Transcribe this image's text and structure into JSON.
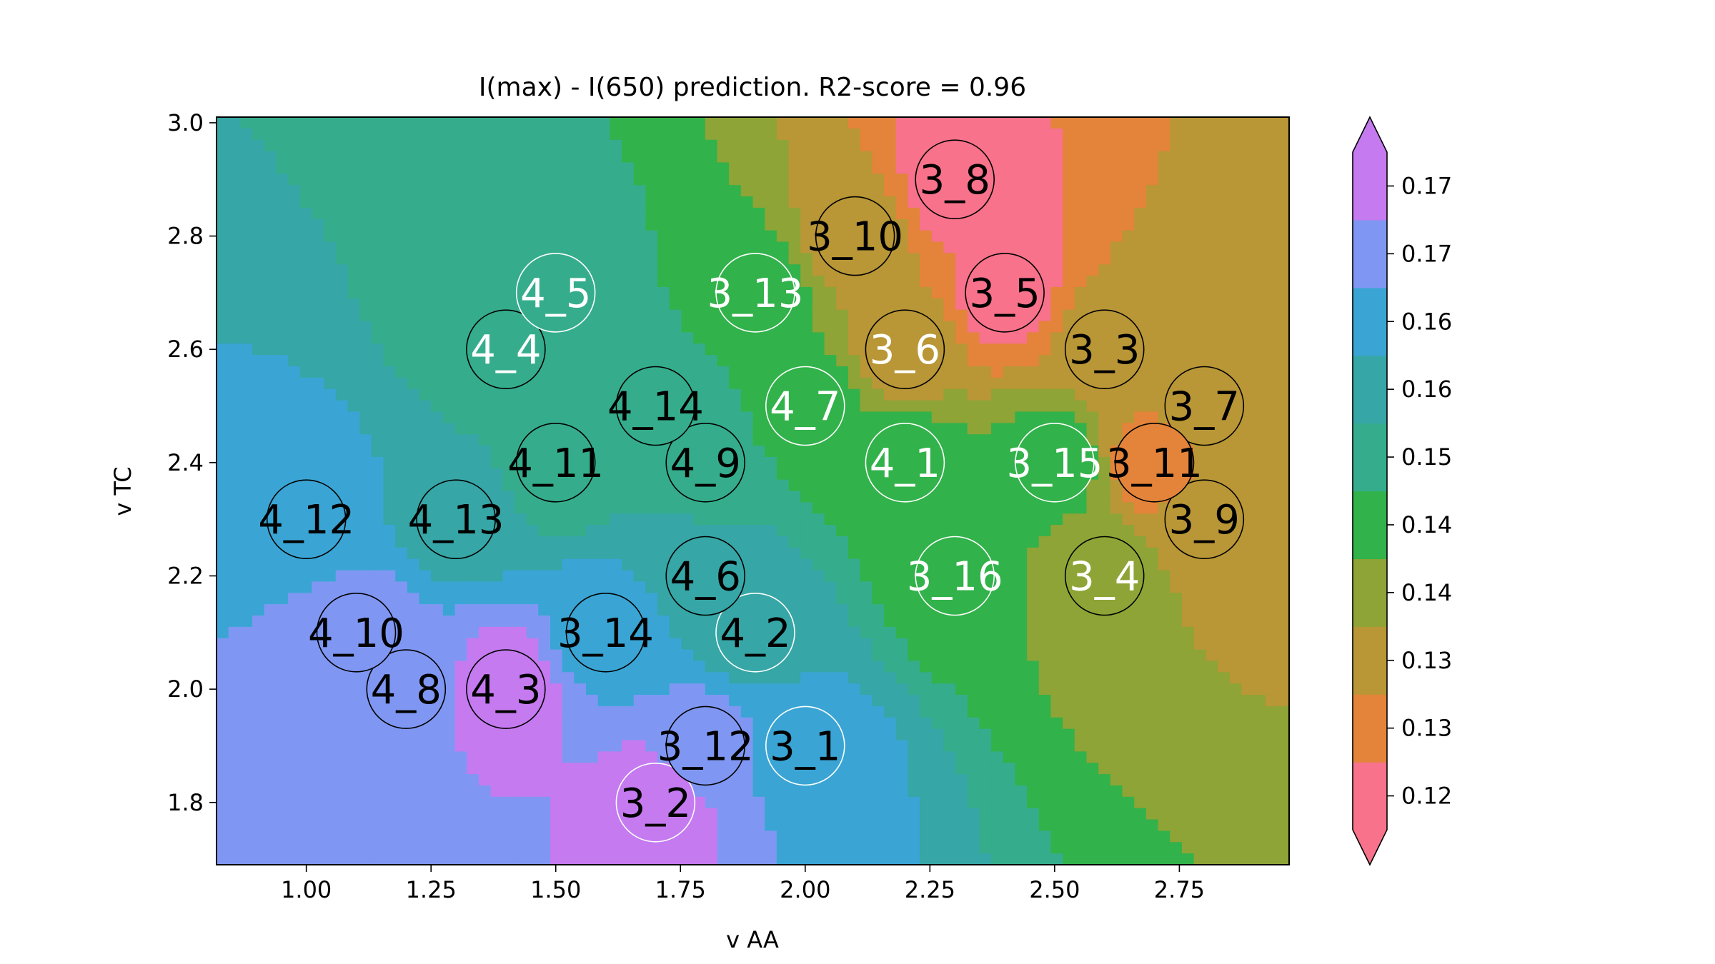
{
  "chart_data": {
    "type": "heatmap",
    "title": "I(max) - I(650) prediction. R2-score = 0.96",
    "xlabel": "v AA",
    "ylabel": "v TC",
    "xlim": [
      0.82,
      2.97
    ],
    "ylim": [
      1.69,
      3.01
    ],
    "x_ticks": [
      1.0,
      1.25,
      1.5,
      1.75,
      2.0,
      2.25,
      2.5,
      2.75
    ],
    "x_tick_labels": [
      "1.00",
      "1.25",
      "1.50",
      "1.75",
      "2.00",
      "2.25",
      "2.50",
      "2.75"
    ],
    "y_ticks": [
      1.8,
      2.0,
      2.2,
      2.4,
      2.6,
      2.8,
      3.0
    ],
    "y_tick_labels": [
      "1.8",
      "2.0",
      "2.2",
      "2.4",
      "2.6",
      "2.8",
      "3.0"
    ],
    "grid": false,
    "colorbar": {
      "position": "right",
      "extend": "both",
      "levels": [
        {
          "label": "0.12",
          "color": "#f7728a"
        },
        {
          "label": "0.13",
          "color": "#e3843a"
        },
        {
          "label": "0.13",
          "color": "#b99636"
        },
        {
          "label": "0.14",
          "color": "#8ea436"
        },
        {
          "label": "0.14",
          "color": "#32b24a"
        },
        {
          "label": "0.15",
          "color": "#35ad8c"
        },
        {
          "label": "0.16",
          "color": "#36a6a6"
        },
        {
          "label": "0.16",
          "color": "#3aa5d4"
        },
        {
          "label": "0.17",
          "color": "#7f97f2"
        },
        {
          "label": "0.17",
          "color": "#c57af0"
        }
      ],
      "under_color": "#f7728a",
      "over_color": "#c57af0"
    },
    "points": [
      {
        "label": "3_1",
        "x": 2.0,
        "y": 1.9,
        "level": 7,
        "edge": "white",
        "text_color": "black"
      },
      {
        "label": "3_2",
        "x": 1.7,
        "y": 1.8,
        "level": 9,
        "edge": "white",
        "text_color": "black"
      },
      {
        "label": "3_3",
        "x": 2.6,
        "y": 2.6,
        "level": 2,
        "edge": "black",
        "text_color": "black"
      },
      {
        "label": "3_4",
        "x": 2.6,
        "y": 2.2,
        "level": 3,
        "edge": "black",
        "text_color": "white"
      },
      {
        "label": "3_5",
        "x": 2.4,
        "y": 2.7,
        "level": 0,
        "edge": "black",
        "text_color": "black"
      },
      {
        "label": "3_6",
        "x": 2.2,
        "y": 2.6,
        "level": 2,
        "edge": "black",
        "text_color": "white"
      },
      {
        "label": "3_7",
        "x": 2.8,
        "y": 2.5,
        "level": 2,
        "edge": "black",
        "text_color": "black"
      },
      {
        "label": "3_8",
        "x": 2.3,
        "y": 2.9,
        "level": 0,
        "edge": "black",
        "text_color": "black"
      },
      {
        "label": "3_9",
        "x": 2.8,
        "y": 2.3,
        "level": 2,
        "edge": "black",
        "text_color": "black"
      },
      {
        "label": "3_10",
        "x": 2.1,
        "y": 2.8,
        "level": 2,
        "edge": "black",
        "text_color": "black"
      },
      {
        "label": "3_11",
        "x": 2.7,
        "y": 2.4,
        "level": 1,
        "edge": "black",
        "text_color": "black"
      },
      {
        "label": "3_12",
        "x": 1.8,
        "y": 1.9,
        "level": 8,
        "edge": "black",
        "text_color": "black"
      },
      {
        "label": "3_13",
        "x": 1.9,
        "y": 2.7,
        "level": 4,
        "edge": "white",
        "text_color": "white"
      },
      {
        "label": "3_14",
        "x": 1.6,
        "y": 2.1,
        "level": 7,
        "edge": "black",
        "text_color": "black"
      },
      {
        "label": "3_15",
        "x": 2.5,
        "y": 2.4,
        "level": 4,
        "edge": "white",
        "text_color": "white"
      },
      {
        "label": "3_16",
        "x": 2.3,
        "y": 2.2,
        "level": 4,
        "edge": "white",
        "text_color": "white"
      },
      {
        "label": "4_1",
        "x": 2.2,
        "y": 2.4,
        "level": 4,
        "edge": "white",
        "text_color": "white"
      },
      {
        "label": "4_2",
        "x": 1.9,
        "y": 2.1,
        "level": 6,
        "edge": "white",
        "text_color": "black"
      },
      {
        "label": "4_3",
        "x": 1.4,
        "y": 2.0,
        "level": 9,
        "edge": "black",
        "text_color": "black"
      },
      {
        "label": "4_4",
        "x": 1.4,
        "y": 2.6,
        "level": 5,
        "edge": "black",
        "text_color": "white"
      },
      {
        "label": "4_5",
        "x": 1.5,
        "y": 2.7,
        "level": 5,
        "edge": "white",
        "text_color": "white"
      },
      {
        "label": "4_6",
        "x": 1.8,
        "y": 2.2,
        "level": 6,
        "edge": "black",
        "text_color": "black"
      },
      {
        "label": "4_7",
        "x": 2.0,
        "y": 2.5,
        "level": 4,
        "edge": "white",
        "text_color": "white"
      },
      {
        "label": "4_8",
        "x": 1.2,
        "y": 2.0,
        "level": 8,
        "edge": "black",
        "text_color": "black"
      },
      {
        "label": "4_9",
        "x": 1.8,
        "y": 2.4,
        "level": 5,
        "edge": "black",
        "text_color": "black"
      },
      {
        "label": "4_10",
        "x": 1.1,
        "y": 2.1,
        "level": 8,
        "edge": "black",
        "text_color": "black"
      },
      {
        "label": "4_11",
        "x": 1.5,
        "y": 2.4,
        "level": 5,
        "edge": "black",
        "text_color": "black"
      },
      {
        "label": "4_12",
        "x": 1.0,
        "y": 2.3,
        "level": 7,
        "edge": "black",
        "text_color": "black"
      },
      {
        "label": "4_13",
        "x": 1.3,
        "y": 2.3,
        "level": 6,
        "edge": "black",
        "text_color": "black"
      },
      {
        "label": "4_14",
        "x": 1.7,
        "y": 2.5,
        "level": 5,
        "edge": "black",
        "text_color": "black"
      }
    ]
  }
}
